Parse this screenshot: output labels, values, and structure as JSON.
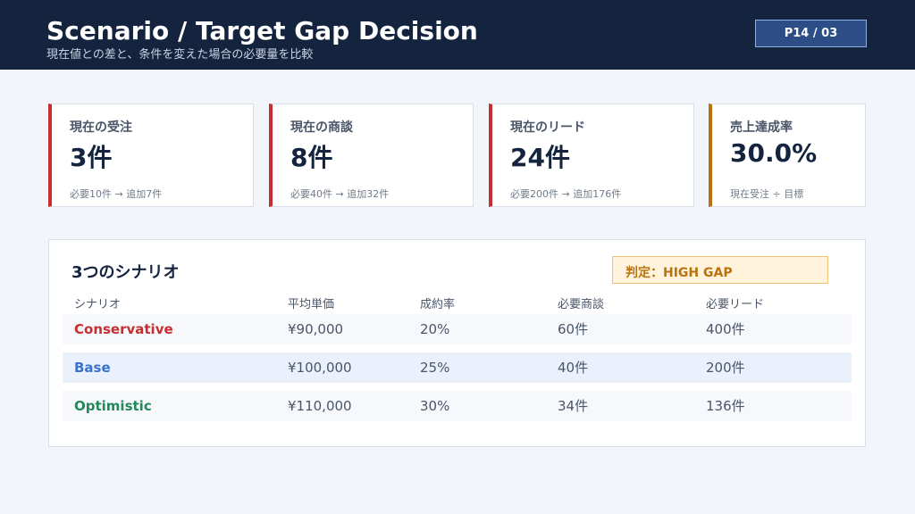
{
  "header": {
    "title": "Scenario / Target Gap Decision",
    "subtitle": "現在値との差と、条件を変えた場合の必要量を比較",
    "badge": "P14 / 03"
  },
  "cards": [
    {
      "label": "現在の受注",
      "value": "3件",
      "note": "必要10件 → 追加7件",
      "accent": "#c62f2f"
    },
    {
      "label": "現在の商談",
      "value": "8件",
      "note": "必要40件 → 追加32件",
      "accent": "#c62f2f"
    },
    {
      "label": "現在のリード",
      "value": "24件",
      "note": "必要200件 → 追加176件",
      "accent": "#c62f2f"
    },
    {
      "label": "売上達成率",
      "value": "30.0%",
      "note": "現在受注 ÷ 目標",
      "accent": "#b8730f"
    }
  ],
  "scenarios": {
    "title": "3つのシナリオ",
    "verdict": "判定：HIGH GAP",
    "columns": [
      "シナリオ",
      "平均単価",
      "成約率",
      "必要商談",
      "必要リード"
    ],
    "rows": [
      {
        "cells": [
          "Conservative",
          "¥90,000",
          "20%",
          "60件",
          "400件"
        ],
        "color": "#c62f2f",
        "bg": "#f6f8fc"
      },
      {
        "cells": [
          "Base",
          "¥100,000",
          "25%",
          "40件",
          "200件"
        ],
        "color": "#3a72cc",
        "bg": "#eaf1fc"
      },
      {
        "cells": [
          "Optimistic",
          "¥110,000",
          "30%",
          "34件",
          "136件"
        ],
        "color": "#23885a",
        "bg": "#f6f8fc"
      }
    ]
  }
}
